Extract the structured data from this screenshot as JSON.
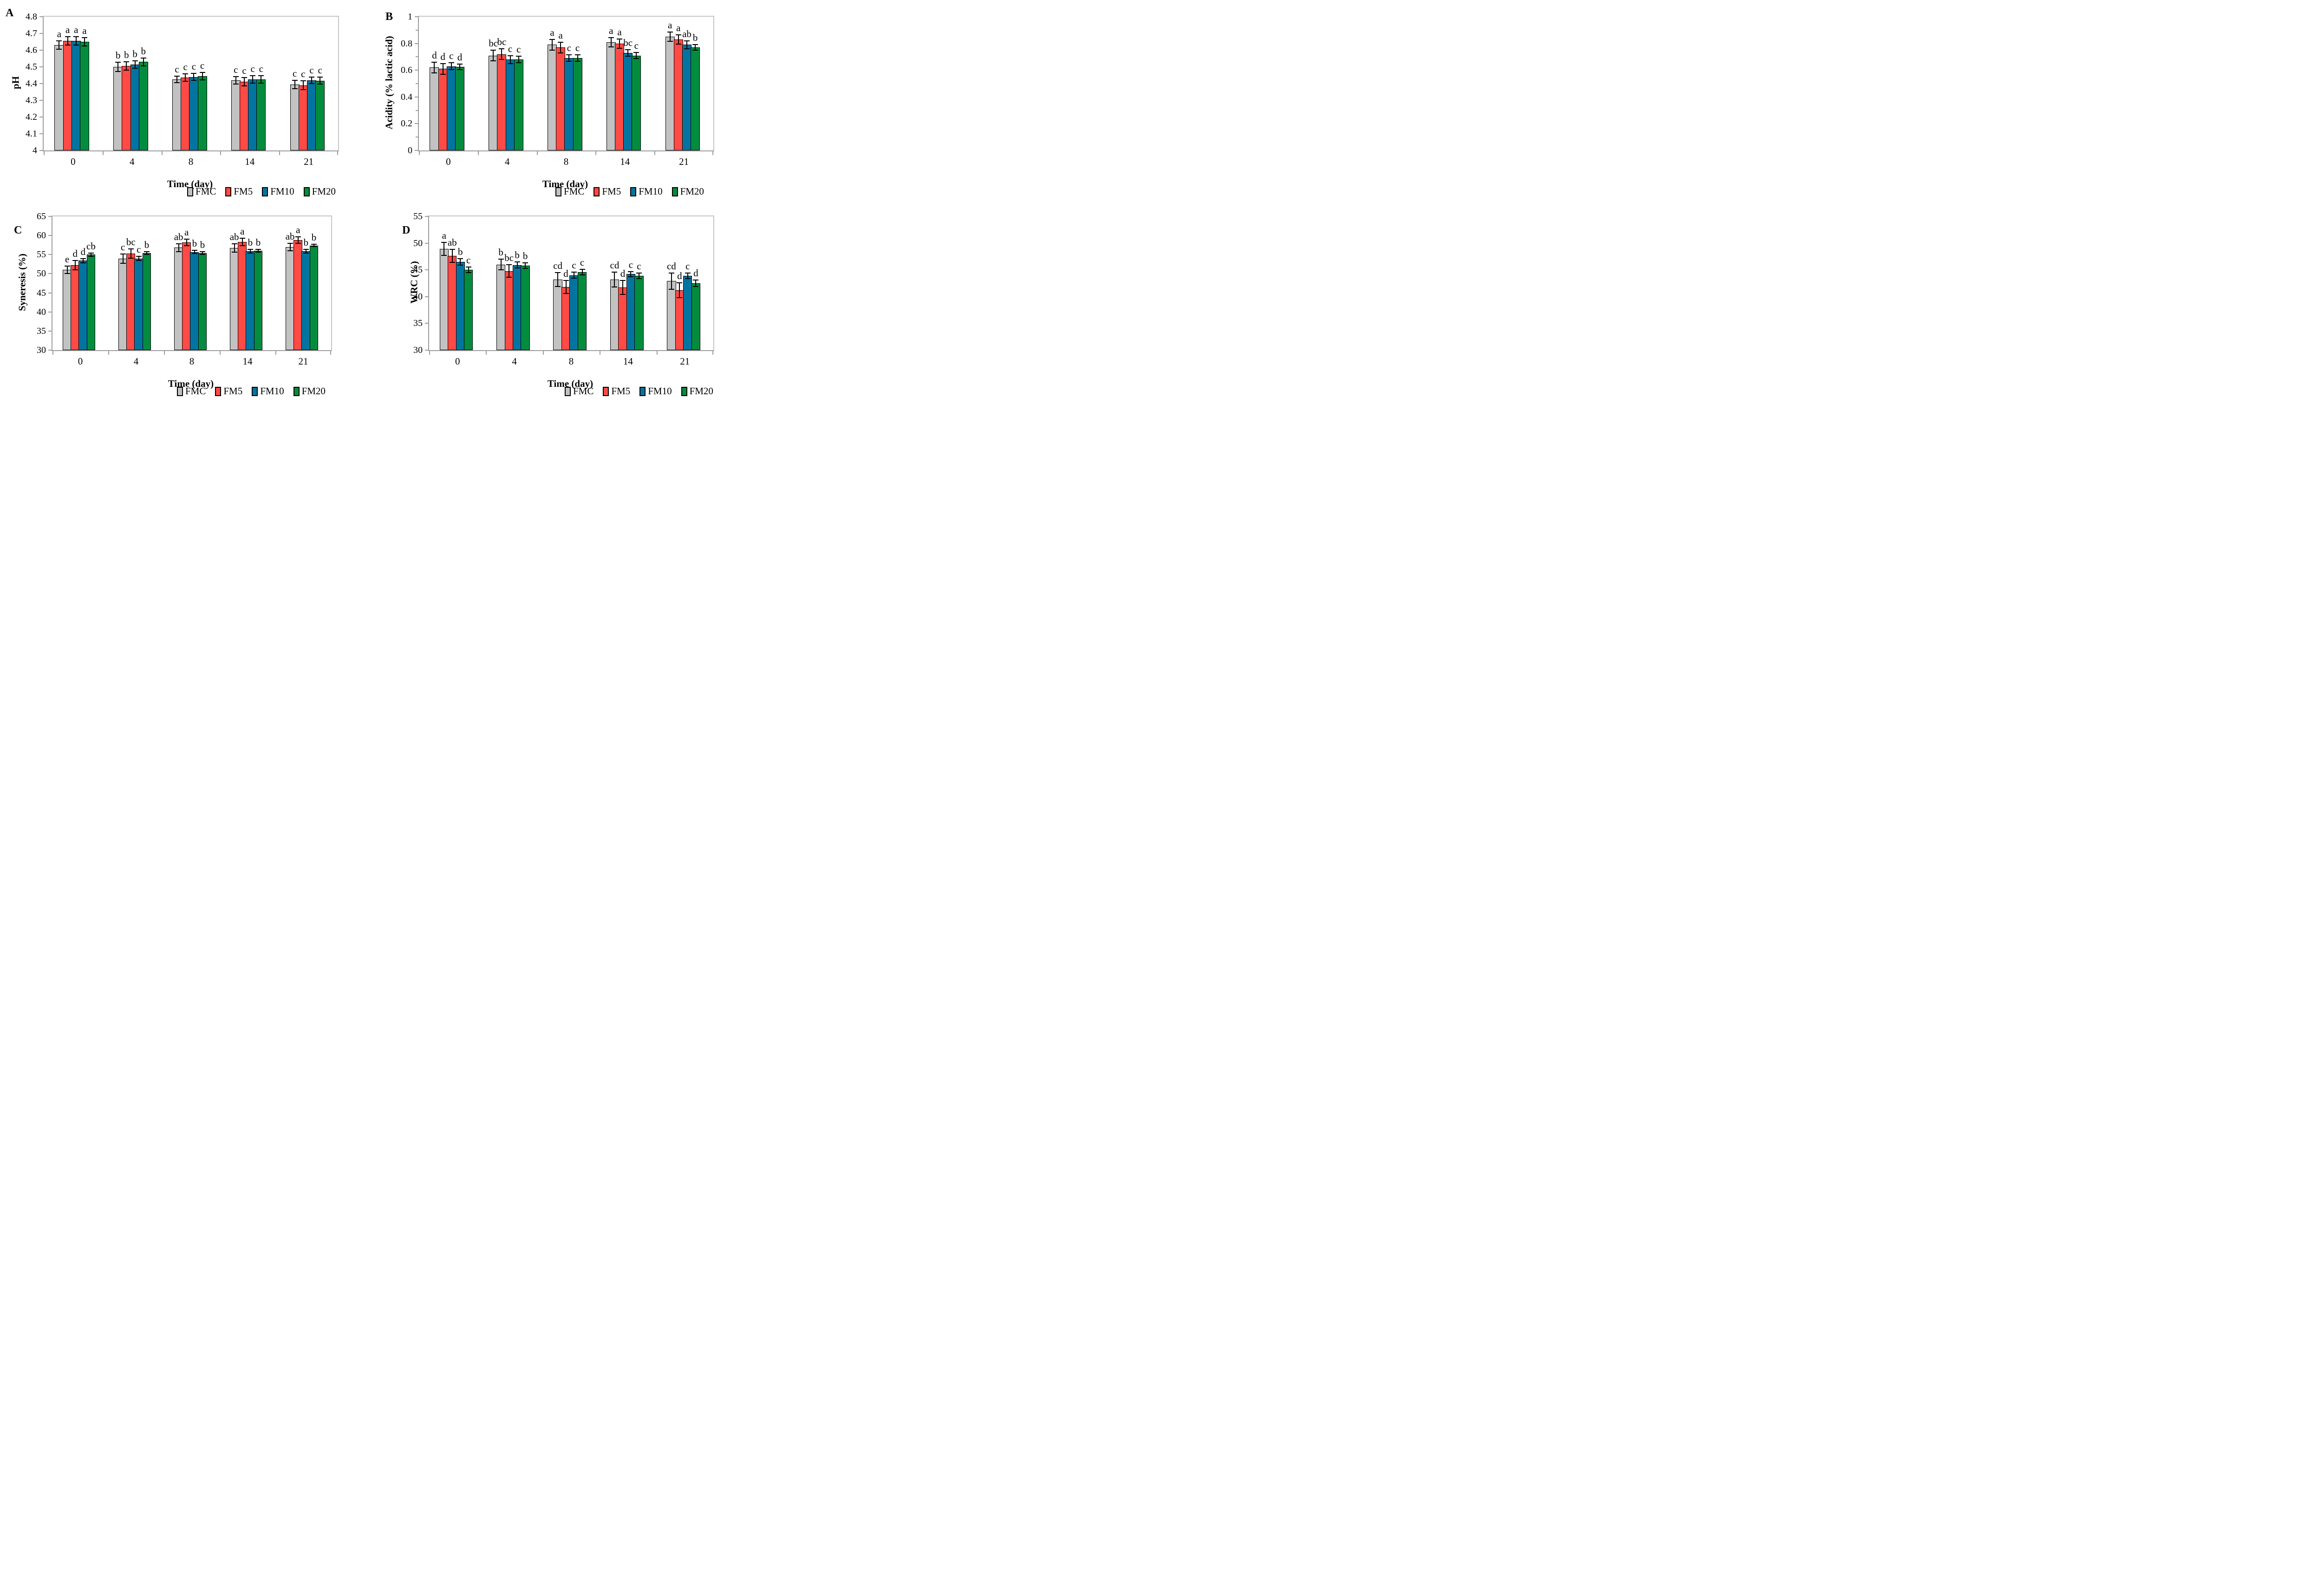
{
  "legend": {
    "items": [
      {
        "label": "FMC",
        "color": "#C2C2C2"
      },
      {
        "label": "FM5",
        "color": "#FF4A45"
      },
      {
        "label": "FM10",
        "color": "#0374A0"
      },
      {
        "label": "FM20",
        "color": "#048C3E"
      }
    ]
  },
  "chart_data": [
    {
      "type": "bar",
      "panel_label": "A",
      "ylabel": "pH",
      "xlabel": "Time (day)",
      "ylim": [
        4,
        4.8
      ],
      "grid": false,
      "legend_position": "bottom",
      "categories": [
        "0",
        "4",
        "8",
        "14",
        "21"
      ],
      "yticks": [
        {
          "v": 4.8,
          "label": "4.8"
        },
        {
          "v": 4.7,
          "label": "4.7"
        },
        {
          "v": 4.6,
          "label": "4.6"
        },
        {
          "v": 4.5,
          "label": "4.5"
        },
        {
          "v": 4.4,
          "label": "4.4"
        },
        {
          "v": 4.3,
          "label": "4.3"
        },
        {
          "v": 4.2,
          "label": "4.2"
        },
        {
          "v": 4.1,
          "label": "4.1"
        },
        {
          "v": 4.0,
          "label": "4"
        }
      ],
      "yticks_minor": [],
      "series": [
        {
          "name": "FMC",
          "color": "#C2C2C2",
          "values": [
            4.63,
            4.5,
            4.425,
            4.42,
            4.395
          ],
          "errors": [
            0.025,
            0.027,
            0.02,
            0.022,
            0.025
          ],
          "letters": [
            "a",
            "b",
            "c",
            "c",
            "c"
          ]
        },
        {
          "name": "FM5",
          "color": "#FF4A45",
          "values": [
            4.655,
            4.505,
            4.435,
            4.41,
            4.39
          ],
          "errors": [
            0.025,
            0.025,
            0.022,
            0.025,
            0.027
          ],
          "letters": [
            "a",
            "b",
            "c",
            "c",
            "c"
          ]
        },
        {
          "name": "FM10",
          "color": "#0374A0",
          "values": [
            4.655,
            4.515,
            4.44,
            4.425,
            4.42
          ],
          "errors": [
            0.025,
            0.022,
            0.02,
            0.022,
            0.02
          ],
          "letters": [
            "a",
            "b",
            "c",
            "c",
            "c"
          ]
        },
        {
          "name": "FM20",
          "color": "#048C3E",
          "values": [
            4.65,
            4.53,
            4.445,
            4.425,
            4.418
          ],
          "errors": [
            0.025,
            0.024,
            0.022,
            0.022,
            0.02
          ],
          "letters": [
            "a",
            "b",
            "c",
            "c",
            "c"
          ]
        }
      ]
    },
    {
      "type": "bar",
      "panel_label": "B",
      "ylabel": "Acidity (% lactic acid)",
      "xlabel": "Time (day)",
      "ylim": [
        0,
        1
      ],
      "grid": false,
      "legend_position": "bottom",
      "categories": [
        "0",
        "4",
        "8",
        "14",
        "21"
      ],
      "yticks": [
        {
          "v": 1.0,
          "label": "1"
        },
        {
          "v": 0.8,
          "label": "0.8"
        },
        {
          "v": 0.6,
          "label": "0.6"
        },
        {
          "v": 0.4,
          "label": "0.4"
        },
        {
          "v": 0.2,
          "label": "0.2"
        },
        {
          "v": 0.0,
          "label": "0"
        }
      ],
      "yticks_minor": [
        0.9,
        0.7,
        0.5,
        0.3,
        0.1
      ],
      "series": [
        {
          "name": "FMC",
          "color": "#C2C2C2",
          "values": [
            0.62,
            0.71,
            0.79,
            0.81,
            0.85
          ],
          "errors": [
            0.04,
            0.04,
            0.04,
            0.035,
            0.035
          ],
          "letters": [
            "d",
            "bc",
            "a",
            "a",
            "a"
          ]
        },
        {
          "name": "FM5",
          "color": "#FF4A45",
          "values": [
            0.61,
            0.72,
            0.77,
            0.8,
            0.83
          ],
          "errors": [
            0.04,
            0.04,
            0.04,
            0.035,
            0.035
          ],
          "letters": [
            "d",
            "bc",
            "a",
            "a",
            "a"
          ]
        },
        {
          "name": "FM10",
          "color": "#0374A0",
          "values": [
            0.63,
            0.68,
            0.69,
            0.73,
            0.79
          ],
          "errors": [
            0.025,
            0.03,
            0.025,
            0.025,
            0.03
          ],
          "letters": [
            "c",
            "c",
            "c",
            "bc",
            "ab"
          ]
        },
        {
          "name": "FM20",
          "color": "#048C3E",
          "values": [
            0.625,
            0.68,
            0.69,
            0.71,
            0.77
          ],
          "errors": [
            0.022,
            0.025,
            0.025,
            0.022,
            0.02
          ],
          "letters": [
            "d",
            "c",
            "c",
            "c",
            "b"
          ]
        }
      ]
    },
    {
      "type": "bar",
      "panel_label": "C",
      "ylabel": "Syneresis (%)",
      "xlabel": "Time (day)",
      "ylim": [
        30,
        65
      ],
      "grid": false,
      "legend_position": "bottom",
      "categories": [
        "0",
        "4",
        "8",
        "14",
        "21"
      ],
      "yticks": [
        {
          "v": 65,
          "label": "65"
        },
        {
          "v": 60,
          "label": "60"
        },
        {
          "v": 55,
          "label": "55"
        },
        {
          "v": 50,
          "label": "50"
        },
        {
          "v": 45,
          "label": "45"
        },
        {
          "v": 40,
          "label": "40"
        },
        {
          "v": 35,
          "label": "35"
        },
        {
          "v": 30,
          "label": "30"
        }
      ],
      "yticks_minor": [],
      "series": [
        {
          "name": "FMC",
          "color": "#C2C2C2",
          "values": [
            51.0,
            53.9,
            56.8,
            56.7,
            57.0
          ],
          "errors": [
            1.0,
            1.2,
            1.0,
            1.1,
            1.0
          ],
          "letters": [
            "e",
            "c",
            "ab",
            "ab",
            "ab"
          ]
        },
        {
          "name": "FM5",
          "color": "#FF4A45",
          "values": [
            52.2,
            55.3,
            58.2,
            58.3,
            58.8
          ],
          "errors": [
            1.2,
            1.2,
            0.9,
            1.0,
            0.9
          ],
          "letters": [
            "d",
            "bc",
            "a",
            "a",
            "a"
          ]
        },
        {
          "name": "FM10",
          "color": "#0374A0",
          "values": [
            53.4,
            54.0,
            55.7,
            55.9,
            55.9
          ],
          "errors": [
            0.5,
            0.6,
            0.45,
            0.5,
            0.5
          ],
          "letters": [
            "d",
            "c",
            "b",
            "b",
            "b"
          ]
        },
        {
          "name": "FM20",
          "color": "#048C3E",
          "values": [
            55.0,
            55.4,
            55.4,
            56.0,
            57.4
          ],
          "errors": [
            0.4,
            0.4,
            0.35,
            0.4,
            0.35
          ],
          "letters": [
            "cb",
            "b",
            "b",
            "b",
            "b"
          ]
        }
      ]
    },
    {
      "type": "bar",
      "panel_label": "D",
      "ylabel": "WRC (%)",
      "xlabel": "Time (day)",
      "ylim": [
        30,
        55
      ],
      "grid": false,
      "legend_position": "bottom",
      "categories": [
        "0",
        "4",
        "8",
        "14",
        "21"
      ],
      "yticks": [
        {
          "v": 55,
          "label": "55"
        },
        {
          "v": 50,
          "label": "50"
        },
        {
          "v": 45,
          "label": "45"
        },
        {
          "v": 40,
          "label": "40"
        },
        {
          "v": 35,
          "label": "35"
        },
        {
          "v": 30,
          "label": "30"
        }
      ],
      "yticks_minor": [],
      "series": [
        {
          "name": "FMC",
          "color": "#C2C2C2",
          "values": [
            48.9,
            46.0,
            43.2,
            43.2,
            42.9
          ],
          "errors": [
            1.2,
            1.0,
            1.3,
            1.4,
            1.5
          ],
          "letters": [
            "a",
            "b",
            "cd",
            "cd",
            "cd"
          ]
        },
        {
          "name": "FM5",
          "color": "#FF4A45",
          "values": [
            47.6,
            44.8,
            41.8,
            41.7,
            41.2
          ],
          "errors": [
            1.2,
            1.2,
            1.2,
            1.3,
            1.4
          ],
          "letters": [
            "ab",
            "bc",
            "d",
            "d",
            "d"
          ]
        },
        {
          "name": "FM10",
          "color": "#0374A0",
          "values": [
            46.5,
            45.9,
            44.0,
            44.2,
            43.9
          ],
          "errors": [
            0.6,
            0.55,
            0.55,
            0.5,
            0.5
          ],
          "letters": [
            "b",
            "b",
            "c",
            "c",
            "c"
          ]
        },
        {
          "name": "FM20",
          "color": "#048C3E",
          "values": [
            45.0,
            45.8,
            44.6,
            43.9,
            42.5
          ],
          "errors": [
            0.5,
            0.55,
            0.5,
            0.5,
            0.6
          ],
          "letters": [
            "c",
            "b",
            "c",
            "c",
            "d"
          ]
        }
      ]
    }
  ]
}
